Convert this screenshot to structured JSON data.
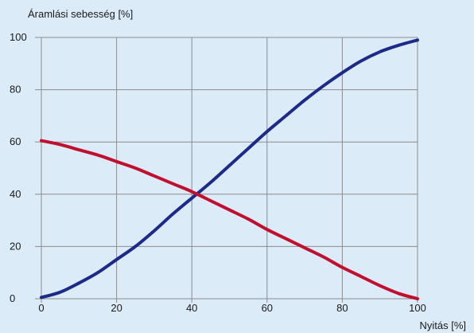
{
  "chart_data": {
    "type": "line",
    "title": "",
    "ylabel": "Áramlási sebesség [%]",
    "xlabel": "Nyitás [%]",
    "xlim": [
      0,
      100
    ],
    "ylim": [
      0,
      100
    ],
    "xticks": [
      0,
      20,
      40,
      60,
      80,
      100
    ],
    "yticks": [
      0,
      20,
      40,
      60,
      80,
      100
    ],
    "xtick_labels": [
      "0",
      "20",
      "40",
      "60",
      "80",
      "100"
    ],
    "ytick_labels": [
      "0",
      "20",
      "40",
      "60",
      "80",
      "100"
    ],
    "grid": true,
    "legend": "none",
    "series": [
      {
        "color": "#1c2a8a",
        "x": [
          0,
          5,
          10,
          15,
          20,
          25,
          30,
          35,
          40,
          45,
          50,
          55,
          60,
          65,
          70,
          75,
          80,
          85,
          90,
          95,
          100
        ],
        "y": [
          0.5,
          2.5,
          6,
          10,
          15,
          20,
          26,
          32.5,
          38.5,
          44.5,
          51,
          57.5,
          64,
          70,
          76,
          81.5,
          86.5,
          91,
          94.5,
          97,
          99
        ]
      },
      {
        "color": "#c0102e",
        "x": [
          0,
          5,
          10,
          15,
          20,
          25,
          30,
          35,
          40,
          45,
          50,
          55,
          60,
          65,
          70,
          75,
          80,
          85,
          90,
          95,
          100
        ],
        "y": [
          60.5,
          59,
          57,
          55,
          52.5,
          50,
          47,
          44,
          41,
          37.5,
          34,
          30.5,
          26.5,
          23,
          19.5,
          16,
          12,
          8.5,
          5,
          2,
          0
        ]
      }
    ]
  }
}
